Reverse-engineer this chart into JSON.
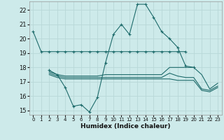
{
  "xlabel": "Humidex (Indice chaleur)",
  "background_color": "#cdeaea",
  "grid_color": "#b8d8d8",
  "line_color": "#1e6b6b",
  "x_values": [
    0,
    1,
    2,
    3,
    4,
    5,
    6,
    7,
    8,
    9,
    10,
    11,
    12,
    13,
    14,
    15,
    16,
    17,
    18,
    19,
    20,
    21,
    22,
    23
  ],
  "series1": [
    20.5,
    19.1,
    19.1,
    19.1,
    19.1,
    19.1,
    19.1,
    19.1,
    19.1,
    19.1,
    19.1,
    19.1,
    19.1,
    19.1,
    19.1,
    19.1,
    19.1,
    19.1,
    19.1,
    19.1,
    null,
    null,
    null,
    null
  ],
  "series2": [
    null,
    null,
    17.8,
    17.5,
    16.6,
    15.3,
    15.4,
    14.9,
    15.9,
    18.3,
    20.3,
    21.0,
    20.3,
    22.4,
    22.4,
    21.5,
    20.5,
    20.0,
    19.4,
    18.1,
    18.0,
    null,
    null,
    null
  ],
  "series3": [
    null,
    null,
    17.7,
    17.5,
    17.4,
    17.4,
    17.4,
    17.4,
    17.4,
    17.5,
    17.5,
    17.5,
    17.5,
    17.5,
    17.5,
    17.5,
    17.5,
    18.0,
    18.0,
    18.0,
    18.0,
    17.5,
    16.5,
    16.9
  ],
  "series4": [
    null,
    null,
    17.6,
    17.4,
    17.3,
    17.3,
    17.3,
    17.3,
    17.3,
    17.3,
    17.3,
    17.3,
    17.3,
    17.3,
    17.3,
    17.3,
    17.3,
    17.6,
    17.4,
    17.3,
    17.3,
    16.5,
    16.4,
    16.7
  ],
  "series5": [
    null,
    null,
    17.5,
    17.3,
    17.2,
    17.2,
    17.2,
    17.2,
    17.2,
    17.2,
    17.2,
    17.2,
    17.2,
    17.2,
    17.2,
    17.2,
    17.2,
    17.2,
    17.1,
    17.1,
    17.1,
    16.4,
    16.3,
    16.6
  ],
  "ylim": [
    14.7,
    22.6
  ],
  "yticks": [
    15,
    16,
    17,
    18,
    19,
    20,
    21,
    22
  ],
  "xticks": [
    0,
    1,
    2,
    3,
    4,
    5,
    6,
    7,
    8,
    9,
    10,
    11,
    12,
    13,
    14,
    15,
    16,
    17,
    18,
    19,
    20,
    21,
    22,
    23
  ]
}
